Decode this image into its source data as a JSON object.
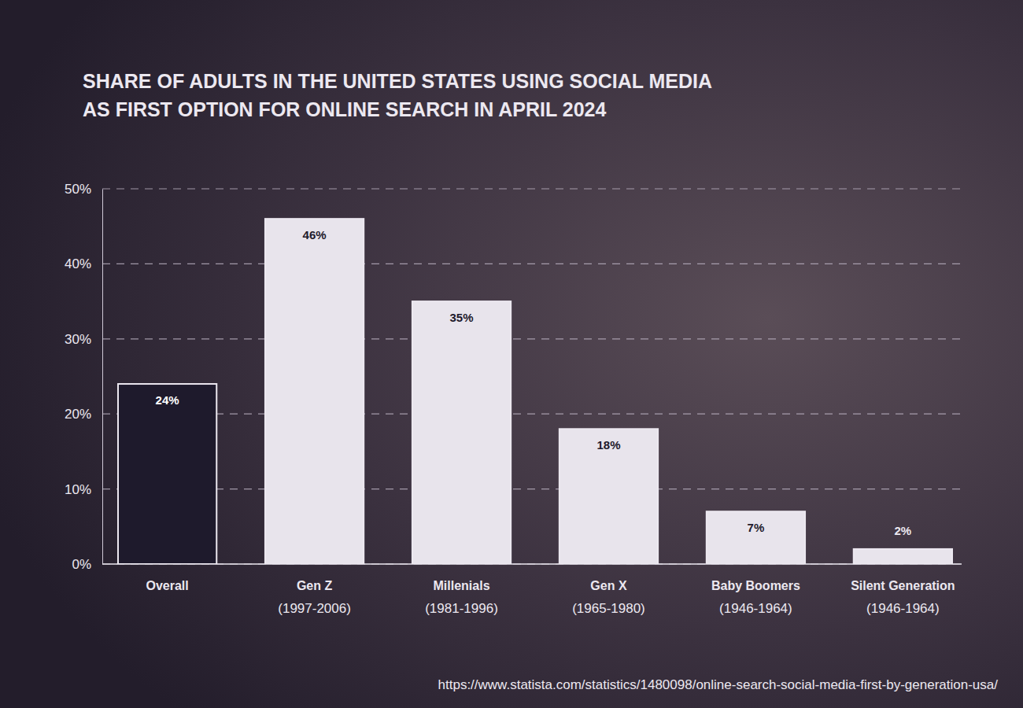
{
  "chart_data": {
    "type": "bar",
    "title": [
      "SHARE OF ADULTS IN THE UNITED STATES USING SOCIAL MEDIA",
      "AS FIRST OPTION FOR ONLINE SEARCH IN APRIL 2024"
    ],
    "categories": [
      "Overall",
      "Gen Z\n(1997-2006)",
      "Millenials\n(1981-1996)",
      "Gen X\n(1965-1980)",
      "Baby Boomers\n(1946-1964)",
      "Silent Generation\n(1946-1964)"
    ],
    "values": [
      24,
      46,
      35,
      18,
      7,
      2
    ],
    "value_labels": [
      "24%",
      "46%",
      "35%",
      "18%",
      "7%",
      "2%"
    ],
    "colors": [
      "#1e1a2c",
      "#e8e4ec",
      "#e8e4ec",
      "#e8e4ec",
      "#e8e4ec",
      "#e8e4ec"
    ],
    "ylim": [
      0,
      50
    ],
    "yticks": [
      {
        "value": 0,
        "label": "0%"
      },
      {
        "value": 10,
        "label": "10%"
      },
      {
        "value": 20,
        "label": "20%"
      },
      {
        "value": 30,
        "label": "30%"
      },
      {
        "value": 40,
        "label": "40%"
      },
      {
        "value": 50,
        "label": "50%"
      }
    ],
    "grid": true,
    "data_labels": true,
    "source": "https://www.statista.com/statistics/1480098/online-search-social-media-first-by-generation-usa/"
  }
}
